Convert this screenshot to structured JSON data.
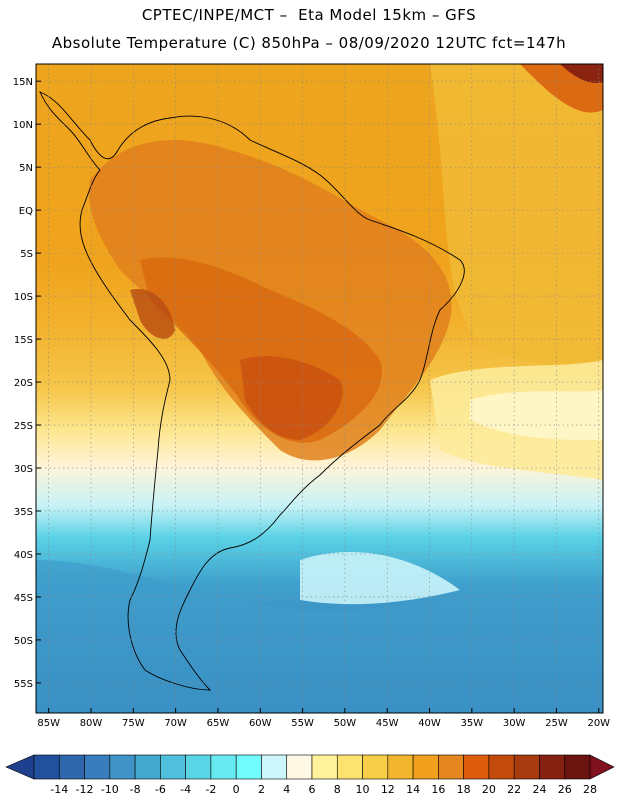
{
  "header": {
    "line1": "CPTEC/INPE/MCT –  Eta Model 15km – GFS",
    "line2": "Absolute Temperature (C) 850hPa – 08/09/2020 12UTC fct=147h"
  },
  "map": {
    "lat_labels": [
      {
        "lat": 15,
        "label": "15N"
      },
      {
        "lat": 10,
        "label": "10N"
      },
      {
        "lat": 5,
        "label": "5N"
      },
      {
        "lat": 0,
        "label": "EQ"
      },
      {
        "lat": -5,
        "label": "5S"
      },
      {
        "lat": -10,
        "label": "10S"
      },
      {
        "lat": -15,
        "label": "15S"
      },
      {
        "lat": -20,
        "label": "20S"
      },
      {
        "lat": -25,
        "label": "25S"
      },
      {
        "lat": -30,
        "label": "30S"
      },
      {
        "lat": -35,
        "label": "35S"
      },
      {
        "lat": -40,
        "label": "40S"
      },
      {
        "lat": -45,
        "label": "45S"
      },
      {
        "lat": -50,
        "label": "50S"
      },
      {
        "lat": -55,
        "label": "55S"
      }
    ],
    "lon_labels": [
      {
        "lon": -85,
        "label": "85W"
      },
      {
        "lon": -80,
        "label": "80W"
      },
      {
        "lon": -75,
        "label": "75W"
      },
      {
        "lon": -70,
        "label": "70W"
      },
      {
        "lon": -65,
        "label": "65W"
      },
      {
        "lon": -60,
        "label": "60W"
      },
      {
        "lon": -55,
        "label": "55W"
      },
      {
        "lon": -50,
        "label": "50W"
      },
      {
        "lon": -45,
        "label": "45W"
      },
      {
        "lon": -40,
        "label": "40W"
      },
      {
        "lon": -35,
        "label": "35W"
      },
      {
        "lon": -30,
        "label": "30W"
      },
      {
        "lon": -25,
        "label": "25W"
      },
      {
        "lon": -20,
        "label": "20W"
      }
    ],
    "lon_range": [
      -86.5,
      -19.5
    ],
    "lat_range": [
      -58.5,
      17
    ]
  },
  "colorbar": {
    "labels": [
      "-14",
      "-12",
      "-10",
      "-8",
      "-6",
      "-4",
      "-2",
      "0",
      "2",
      "4",
      "6",
      "8",
      "10",
      "12",
      "14",
      "16",
      "18",
      "20",
      "22",
      "24",
      "26",
      "28"
    ],
    "colors": [
      "#1f3f8f",
      "#22509d",
      "#2f67ad",
      "#3a7dbc",
      "#3f93c6",
      "#45a8cf",
      "#4fbfdc",
      "#5ad5e6",
      "#66e9f1",
      "#72fbfb",
      "#cdf6fa",
      "#fff8e4",
      "#fff29a",
      "#fce26e",
      "#f8cd48",
      "#f1b52e",
      "#f0a01c",
      "#e6861e",
      "#dc5c0c",
      "#c44a0c",
      "#a83a10",
      "#862010",
      "#6a1410",
      "#80101e"
    ]
  }
}
